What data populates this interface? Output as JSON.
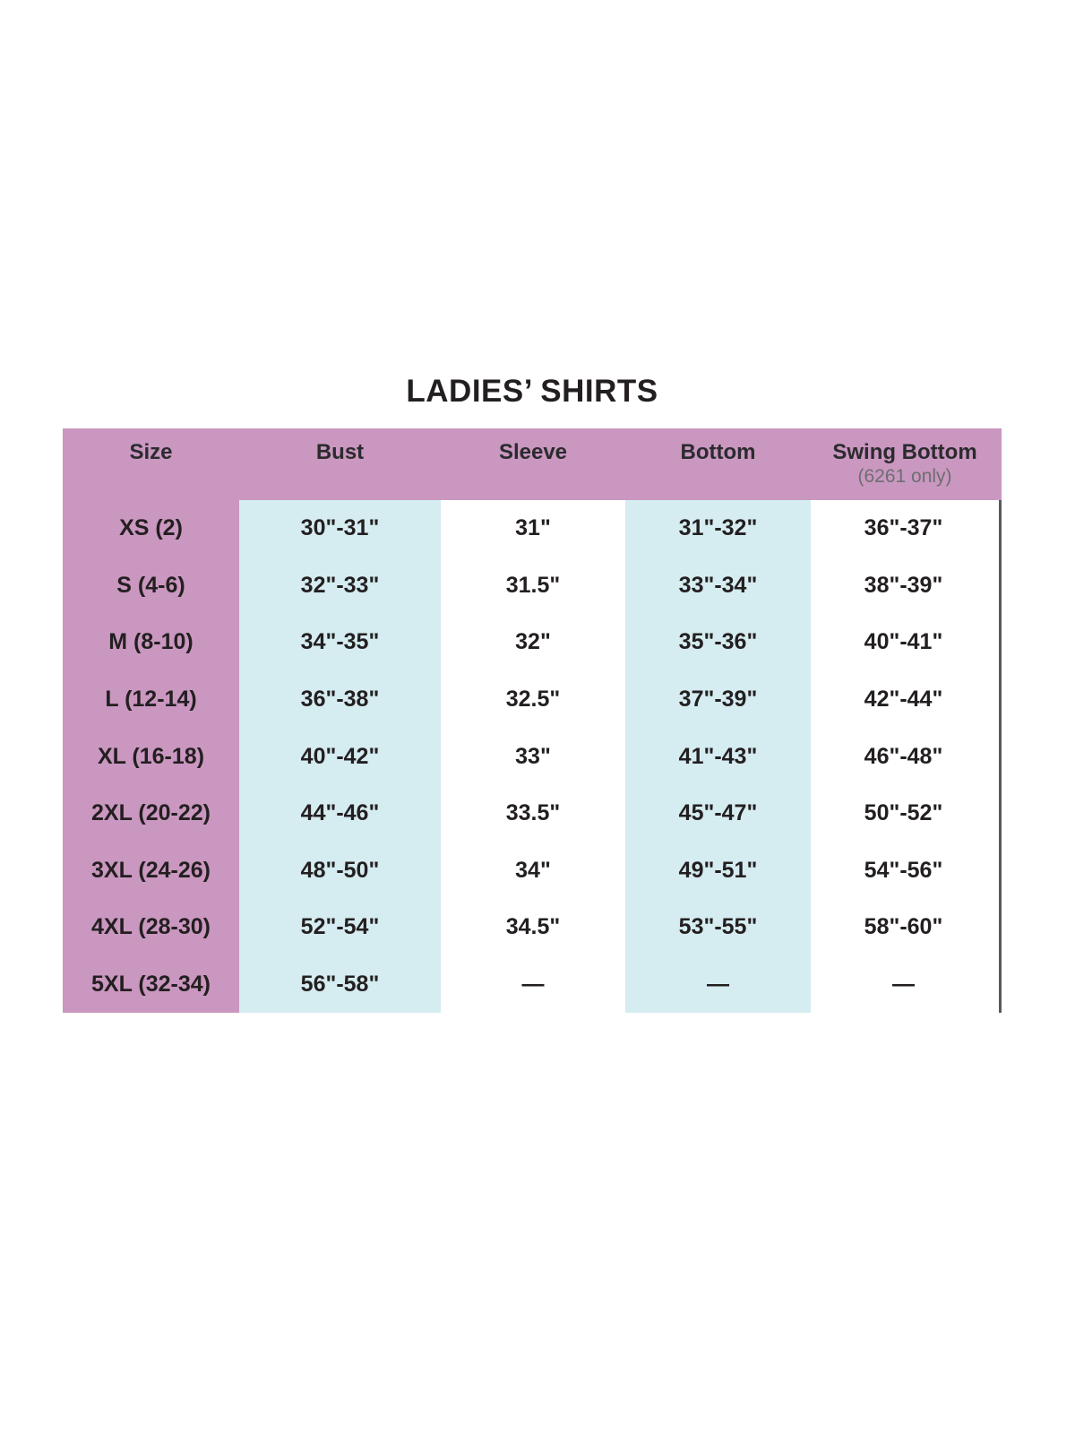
{
  "page": {
    "title": "LADIES’ SHIRTS"
  },
  "colors": {
    "pink": "#ca97c0",
    "blue": "#d5ecf1",
    "text": "#231f20",
    "note": "#6d6e71",
    "border": "#58595b"
  },
  "table": {
    "headers": {
      "size": "Size",
      "bust": "Bust",
      "sleeve": "Sleeve",
      "bottom": "Bottom",
      "swing": "Swing Bottom",
      "swing_note": "(6261 only)"
    },
    "rows": [
      {
        "size": "XS (2)",
        "bust": "30\"-31\"",
        "sleeve": "31\"",
        "bottom": "31\"-32\"",
        "swing": "36\"-37\""
      },
      {
        "size": "S (4-6)",
        "bust": "32\"-33\"",
        "sleeve": "31.5\"",
        "bottom": "33\"-34\"",
        "swing": "38\"-39\""
      },
      {
        "size": "M (8-10)",
        "bust": "34\"-35\"",
        "sleeve": "32\"",
        "bottom": "35\"-36\"",
        "swing": "40\"-41\""
      },
      {
        "size": "L (12-14)",
        "bust": "36\"-38\"",
        "sleeve": "32.5\"",
        "bottom": "37\"-39\"",
        "swing": "42\"-44\""
      },
      {
        "size": "XL (16-18)",
        "bust": "40\"-42\"",
        "sleeve": "33\"",
        "bottom": "41\"-43\"",
        "swing": "46\"-48\""
      },
      {
        "size": "2XL (20-22)",
        "bust": "44\"-46\"",
        "sleeve": "33.5\"",
        "bottom": "45\"-47\"",
        "swing": "50\"-52\""
      },
      {
        "size": "3XL (24-26)",
        "bust": "48\"-50\"",
        "sleeve": "34\"",
        "bottom": "49\"-51\"",
        "swing": "54\"-56\""
      },
      {
        "size": "4XL (28-30)",
        "bust": "52\"-54\"",
        "sleeve": "34.5\"",
        "bottom": "53\"-55\"",
        "swing": "58\"-60\""
      },
      {
        "size": "5XL (32-34)",
        "bust": "56\"-58\"",
        "sleeve": "—",
        "bottom": "—",
        "swing": "—"
      }
    ]
  }
}
